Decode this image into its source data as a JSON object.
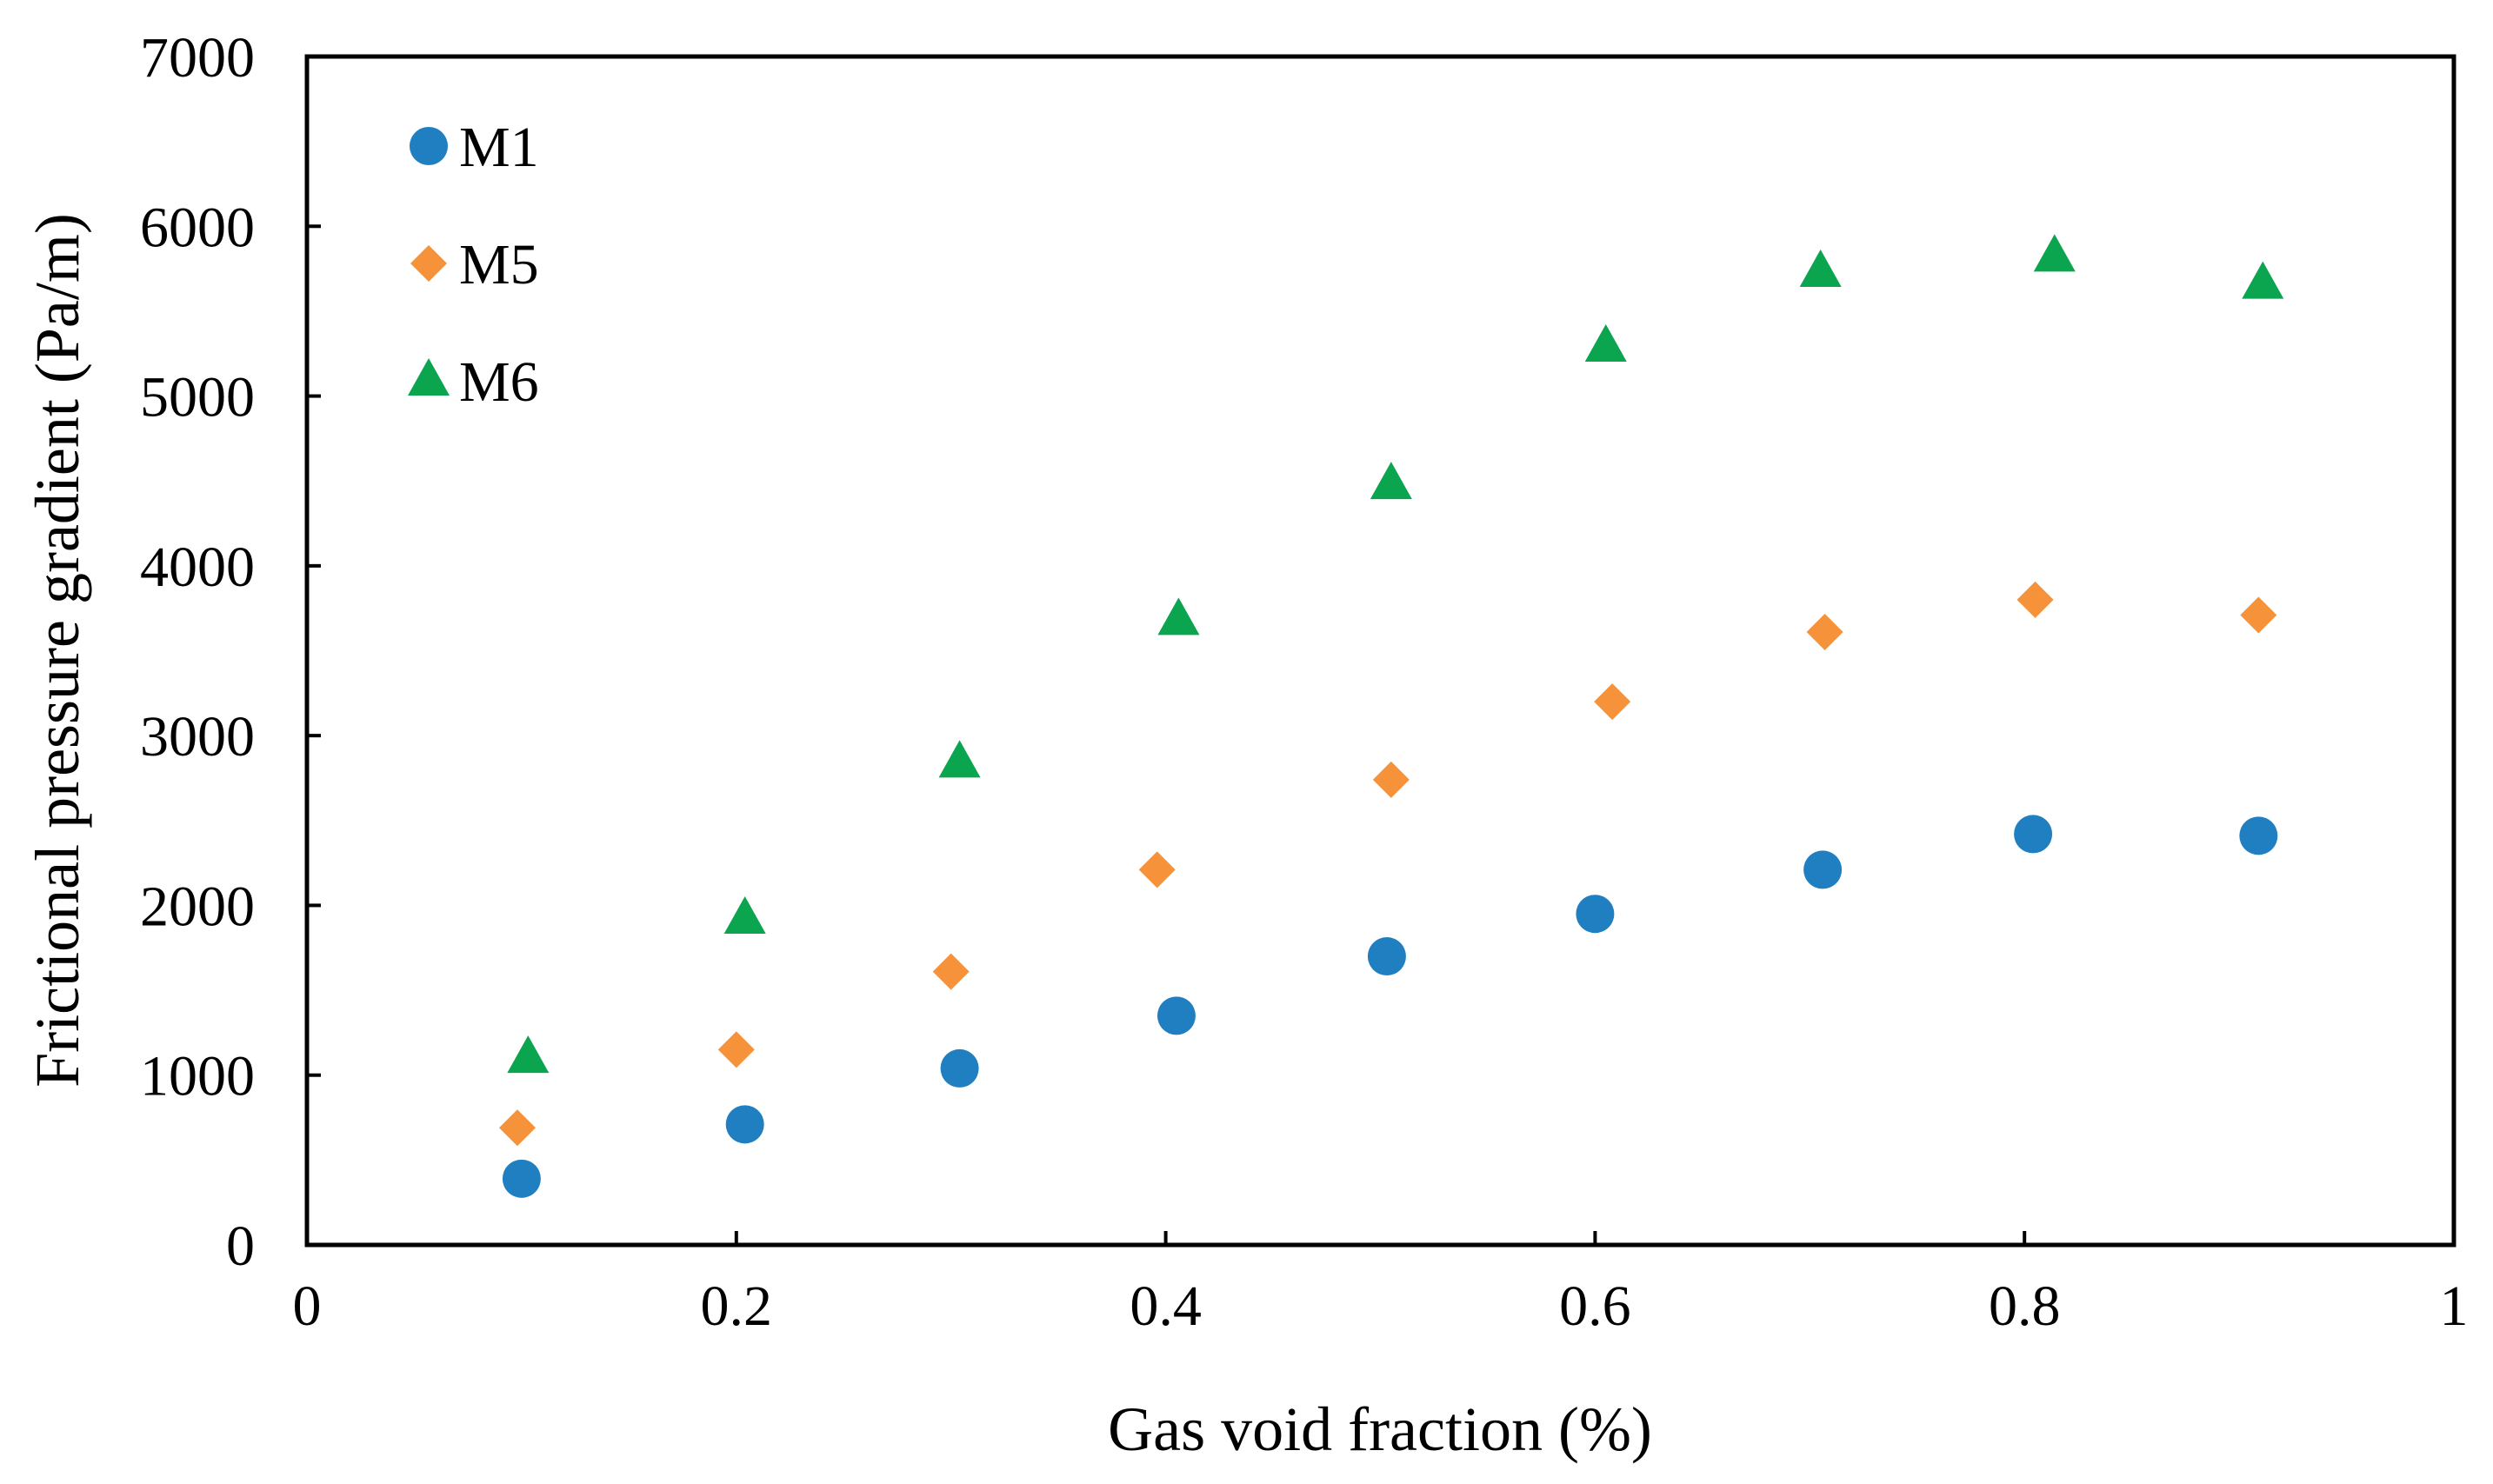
{
  "chart_data": {
    "type": "scatter",
    "title": "",
    "xlabel": "Gas void fraction (%)",
    "ylabel": "Frictional pressure  gradient (Pa/m)",
    "xlim": [
      0,
      1
    ],
    "ylim": [
      0,
      7000
    ],
    "x_ticks": [
      "0",
      "0.2",
      "0.4",
      "0.6",
      "0.8",
      "1"
    ],
    "x_tick_values": [
      0,
      0.2,
      0.4,
      0.6,
      0.8,
      1
    ],
    "y_ticks": [
      "0",
      "1000",
      "2000",
      "3000",
      "4000",
      "5000",
      "6000",
      "7000"
    ],
    "y_tick_values": [
      0,
      1000,
      2000,
      3000,
      4000,
      5000,
      6000,
      7000
    ],
    "grid": false,
    "legend_position": "top-left",
    "series": [
      {
        "name": "M1",
        "marker": "circle",
        "color": "#1F7FC1",
        "x": [
          0.1,
          0.204,
          0.304,
          0.405,
          0.503,
          0.6,
          0.706,
          0.804,
          0.909
        ],
        "y": [
          390,
          710,
          1040,
          1350,
          1700,
          1950,
          2210,
          2420,
          2410
        ]
      },
      {
        "name": "M5",
        "marker": "diamond",
        "color": "#F5923A",
        "x": [
          0.098,
          0.2,
          0.3,
          0.396,
          0.505,
          0.608,
          0.707,
          0.805,
          0.909
        ],
        "y": [
          690,
          1150,
          1610,
          2210,
          2740,
          3200,
          3610,
          3800,
          3710
        ]
      },
      {
        "name": "M6",
        "marker": "triangle",
        "color": "#0BA550",
        "x": [
          0.103,
          0.204,
          0.304,
          0.406,
          0.505,
          0.605,
          0.705,
          0.814,
          0.911
        ],
        "y": [
          1100,
          1920,
          2840,
          3680,
          4480,
          5290,
          5730,
          5820,
          5660
        ]
      }
    ]
  }
}
